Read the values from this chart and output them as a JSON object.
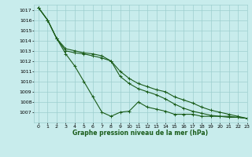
{
  "title": "Graphe pression niveau de la mer (hPa)",
  "bg_color": "#c8ecec",
  "grid_color": "#9dcece",
  "line_color": "#1a5c1a",
  "xlim": [
    -0.5,
    23
  ],
  "ylim": [
    1006,
    1017.5
  ],
  "xticks": [
    0,
    1,
    2,
    3,
    4,
    5,
    6,
    7,
    8,
    9,
    10,
    11,
    12,
    13,
    14,
    15,
    16,
    17,
    18,
    19,
    20,
    21,
    22,
    23
  ],
  "yticks": [
    1007,
    1008,
    1009,
    1010,
    1011,
    1012,
    1013,
    1014,
    1015,
    1016,
    1017
  ],
  "series": [
    [
      1017.2,
      1016.0,
      1014.2,
      1012.7,
      1011.5,
      1010.0,
      1008.5,
      1007.0,
      1006.6,
      1007.0,
      1007.1,
      1008.0,
      1007.5,
      1007.3,
      1007.1,
      1006.8,
      1006.8,
      1006.8,
      1006.6,
      1006.6,
      1006.6,
      1006.6,
      1006.5,
      1006.4
    ],
    [
      1017.2,
      1016.0,
      1014.2,
      1013.0,
      1012.8,
      1012.7,
      1012.5,
      1012.3,
      1012.0,
      1011.0,
      1010.3,
      1009.8,
      1009.5,
      1009.2,
      1009.0,
      1008.5,
      1008.2,
      1007.9,
      1007.5,
      1007.2,
      1007.0,
      1006.8,
      1006.6,
      1006.4
    ],
    [
      1017.2,
      1016.0,
      1014.2,
      1013.2,
      1013.0,
      1012.8,
      1012.7,
      1012.5,
      1012.0,
      1010.5,
      1009.8,
      1009.3,
      1009.0,
      1008.7,
      1008.3,
      1007.8,
      1007.4,
      1007.1,
      1006.9,
      1006.7,
      1006.6,
      1006.5,
      1006.5,
      1006.4
    ]
  ],
  "title_fontsize": 5.5,
  "tick_fontsize": 4.5
}
